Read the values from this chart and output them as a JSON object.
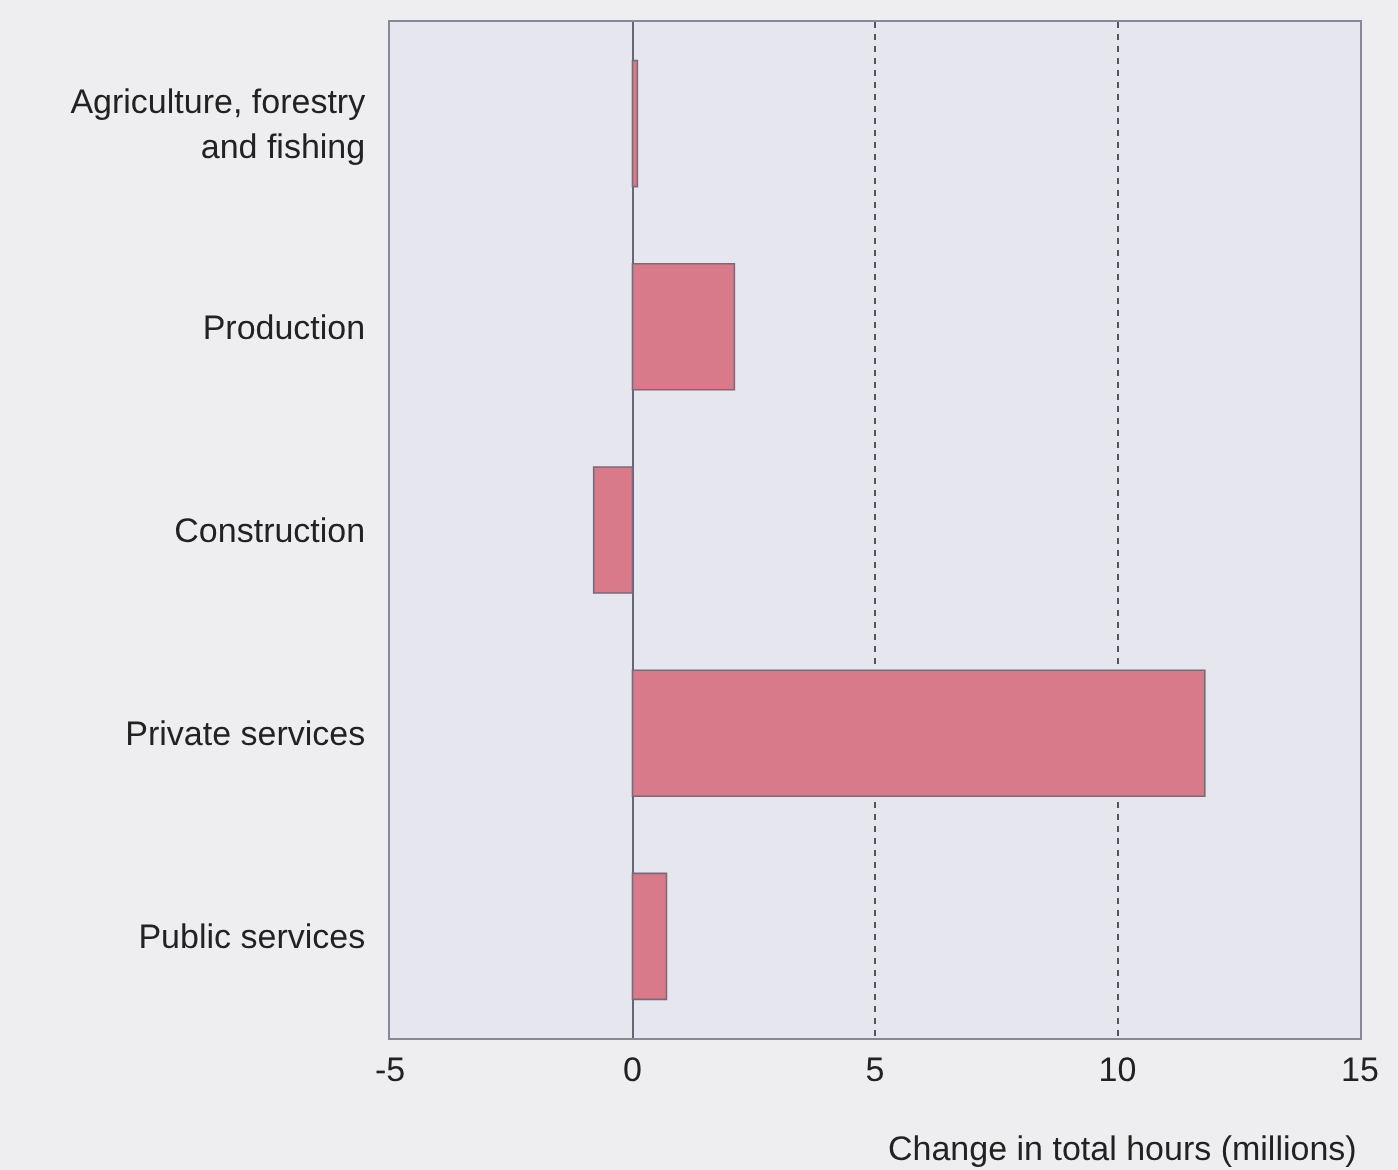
{
  "chart_data": {
    "type": "bar",
    "orientation": "horizontal",
    "xlabel": "Change in total hours (millions)",
    "categories": [
      "Agriculture, forestry\nand fishing",
      "Production",
      "Construction",
      "Private services",
      "Public services"
    ],
    "values": [
      0.1,
      2.1,
      -0.8,
      11.8,
      0.7
    ],
    "color": "#d97a8b",
    "xlim": [
      -5,
      15
    ],
    "xticks": [
      -5,
      0,
      5,
      10,
      15
    ],
    "grid": "x"
  }
}
